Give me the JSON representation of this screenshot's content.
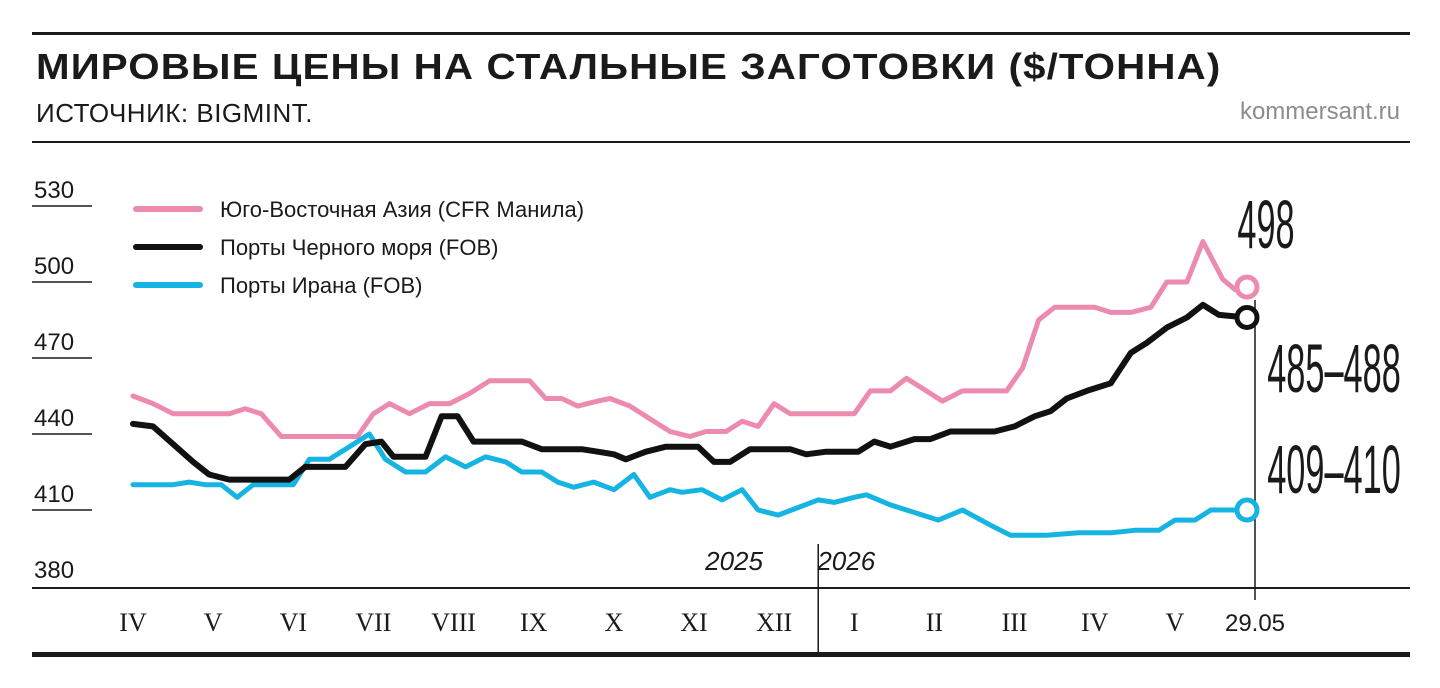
{
  "header": {
    "title": "МИРОВЫЕ ЦЕНЫ НА СТАЛЬНЫЕ ЗАГОТОВКИ ($/ТОННА)",
    "source": "ИСТОЧНИК: BIGMINT.",
    "brand": "kommersant.ru"
  },
  "chart_data": {
    "type": "line",
    "ylim": [
      380,
      530
    ],
    "yticks": [
      "530",
      "500",
      "470",
      "440",
      "410",
      "380"
    ],
    "ytick_values": [
      530,
      500,
      470,
      440,
      410,
      380
    ],
    "xlim": [
      0,
      14.2
    ],
    "categories": [
      "IV",
      "V",
      "VI",
      "VII",
      "VIII",
      "IX",
      "X",
      "XI",
      "XII",
      "I",
      "II",
      "III",
      "IV",
      "V",
      "29.05"
    ],
    "category_positions": [
      0,
      1,
      2,
      3,
      4,
      5,
      6,
      7,
      8,
      9,
      10,
      11,
      12,
      13,
      14
    ],
    "years": [
      {
        "label": "2025",
        "x": 7.5
      },
      {
        "label": "2026",
        "x": 8.9
      }
    ],
    "year_divider_x": 8.55,
    "legend_placement": "top-left",
    "series": [
      {
        "name": "Юго-Восточная Азия (CFR Манила)",
        "color": "#ec8aaf",
        "callout": "498",
        "points": [
          [
            0,
            455
          ],
          [
            0.25,
            452
          ],
          [
            0.5,
            448
          ],
          [
            0.75,
            448
          ],
          [
            1.0,
            448
          ],
          [
            1.2,
            448
          ],
          [
            1.4,
            450
          ],
          [
            1.6,
            448
          ],
          [
            1.85,
            439
          ],
          [
            2.2,
            439
          ],
          [
            2.5,
            439
          ],
          [
            2.8,
            439
          ],
          [
            3.0,
            448
          ],
          [
            3.2,
            452
          ],
          [
            3.45,
            448
          ],
          [
            3.7,
            452
          ],
          [
            3.95,
            452
          ],
          [
            4.2,
            456
          ],
          [
            4.45,
            461
          ],
          [
            4.75,
            461
          ],
          [
            4.95,
            461
          ],
          [
            5.15,
            454
          ],
          [
            5.35,
            454
          ],
          [
            5.55,
            451
          ],
          [
            5.8,
            453
          ],
          [
            5.95,
            454
          ],
          [
            6.2,
            451
          ],
          [
            6.45,
            446
          ],
          [
            6.7,
            441
          ],
          [
            6.95,
            439
          ],
          [
            7.15,
            441
          ],
          [
            7.4,
            441
          ],
          [
            7.6,
            445
          ],
          [
            7.8,
            443
          ],
          [
            8.0,
            452
          ],
          [
            8.2,
            448
          ],
          [
            8.45,
            448
          ],
          [
            8.75,
            448
          ],
          [
            9.0,
            448
          ],
          [
            9.2,
            457
          ],
          [
            9.45,
            457
          ],
          [
            9.65,
            462
          ],
          [
            9.85,
            458
          ],
          [
            10.1,
            453
          ],
          [
            10.35,
            457
          ],
          [
            10.6,
            457
          ],
          [
            10.9,
            457
          ],
          [
            11.1,
            466
          ],
          [
            11.3,
            485
          ],
          [
            11.5,
            490
          ],
          [
            11.8,
            490
          ],
          [
            12.0,
            490
          ],
          [
            12.2,
            488
          ],
          [
            12.45,
            488
          ],
          [
            12.7,
            490
          ],
          [
            12.9,
            500
          ],
          [
            13.15,
            500
          ],
          [
            13.35,
            516
          ],
          [
            13.6,
            501
          ],
          [
            13.75,
            497
          ],
          [
            13.9,
            498
          ]
        ]
      },
      {
        "name": "Порты Черного моря (FOB)",
        "color": "#111111",
        "callout": "485–488",
        "points": [
          [
            0,
            444
          ],
          [
            0.25,
            443
          ],
          [
            0.5,
            436
          ],
          [
            0.75,
            429
          ],
          [
            0.95,
            424
          ],
          [
            1.2,
            422
          ],
          [
            1.5,
            422
          ],
          [
            1.8,
            422
          ],
          [
            1.95,
            422
          ],
          [
            2.15,
            427
          ],
          [
            2.5,
            427
          ],
          [
            2.65,
            427
          ],
          [
            2.9,
            436
          ],
          [
            3.1,
            437
          ],
          [
            3.25,
            431
          ],
          [
            3.5,
            431
          ],
          [
            3.65,
            431
          ],
          [
            3.85,
            447
          ],
          [
            4.05,
            447
          ],
          [
            4.25,
            437
          ],
          [
            4.55,
            437
          ],
          [
            4.85,
            437
          ],
          [
            5.1,
            434
          ],
          [
            5.35,
            434
          ],
          [
            5.6,
            434
          ],
          [
            5.8,
            433
          ],
          [
            6.0,
            432
          ],
          [
            6.15,
            430
          ],
          [
            6.4,
            433
          ],
          [
            6.65,
            435
          ],
          [
            6.9,
            435
          ],
          [
            7.05,
            435
          ],
          [
            7.25,
            429
          ],
          [
            7.45,
            429
          ],
          [
            7.7,
            434
          ],
          [
            7.95,
            434
          ],
          [
            8.2,
            434
          ],
          [
            8.4,
            432
          ],
          [
            8.65,
            433
          ],
          [
            8.9,
            433
          ],
          [
            9.05,
            433
          ],
          [
            9.25,
            437
          ],
          [
            9.45,
            435
          ],
          [
            9.75,
            438
          ],
          [
            9.95,
            438
          ],
          [
            10.2,
            441
          ],
          [
            10.5,
            441
          ],
          [
            10.75,
            441
          ],
          [
            11.0,
            443
          ],
          [
            11.25,
            447
          ],
          [
            11.45,
            449
          ],
          [
            11.65,
            454
          ],
          [
            11.9,
            457
          ],
          [
            12.2,
            460
          ],
          [
            12.45,
            472
          ],
          [
            12.65,
            476
          ],
          [
            12.9,
            482
          ],
          [
            13.15,
            486
          ],
          [
            13.35,
            491
          ],
          [
            13.55,
            487
          ],
          [
            13.9,
            486
          ]
        ]
      },
      {
        "name": "Порты Ирана (FOB)",
        "color": "#15b4e3",
        "callout": "409–410",
        "points": [
          [
            0,
            420
          ],
          [
            0.25,
            420
          ],
          [
            0.5,
            420
          ],
          [
            0.7,
            421
          ],
          [
            0.9,
            420
          ],
          [
            1.1,
            420
          ],
          [
            1.3,
            415
          ],
          [
            1.5,
            420
          ],
          [
            1.75,
            420
          ],
          [
            2.0,
            420
          ],
          [
            2.2,
            430
          ],
          [
            2.45,
            430
          ],
          [
            2.7,
            435
          ],
          [
            2.95,
            440
          ],
          [
            3.15,
            430
          ],
          [
            3.4,
            425
          ],
          [
            3.65,
            425
          ],
          [
            3.9,
            431
          ],
          [
            4.15,
            427
          ],
          [
            4.4,
            431
          ],
          [
            4.65,
            429
          ],
          [
            4.85,
            425
          ],
          [
            5.1,
            425
          ],
          [
            5.3,
            421
          ],
          [
            5.5,
            419
          ],
          [
            5.75,
            421
          ],
          [
            6.0,
            418
          ],
          [
            6.25,
            424
          ],
          [
            6.45,
            415
          ],
          [
            6.7,
            418
          ],
          [
            6.85,
            417
          ],
          [
            7.1,
            418
          ],
          [
            7.35,
            414
          ],
          [
            7.6,
            418
          ],
          [
            7.8,
            410
          ],
          [
            8.05,
            408
          ],
          [
            8.3,
            411
          ],
          [
            8.55,
            414
          ],
          [
            8.75,
            413
          ],
          [
            9.0,
            415
          ],
          [
            9.15,
            416
          ],
          [
            9.45,
            412
          ],
          [
            9.75,
            409
          ],
          [
            10.05,
            406
          ],
          [
            10.35,
            410
          ],
          [
            10.7,
            404
          ],
          [
            10.95,
            400
          ],
          [
            11.4,
            400
          ],
          [
            11.8,
            401
          ],
          [
            12.2,
            401
          ],
          [
            12.5,
            402
          ],
          [
            12.8,
            402
          ],
          [
            13.0,
            406
          ],
          [
            13.25,
            406
          ],
          [
            13.45,
            410
          ],
          [
            13.65,
            410
          ],
          [
            13.9,
            410
          ]
        ]
      }
    ]
  }
}
